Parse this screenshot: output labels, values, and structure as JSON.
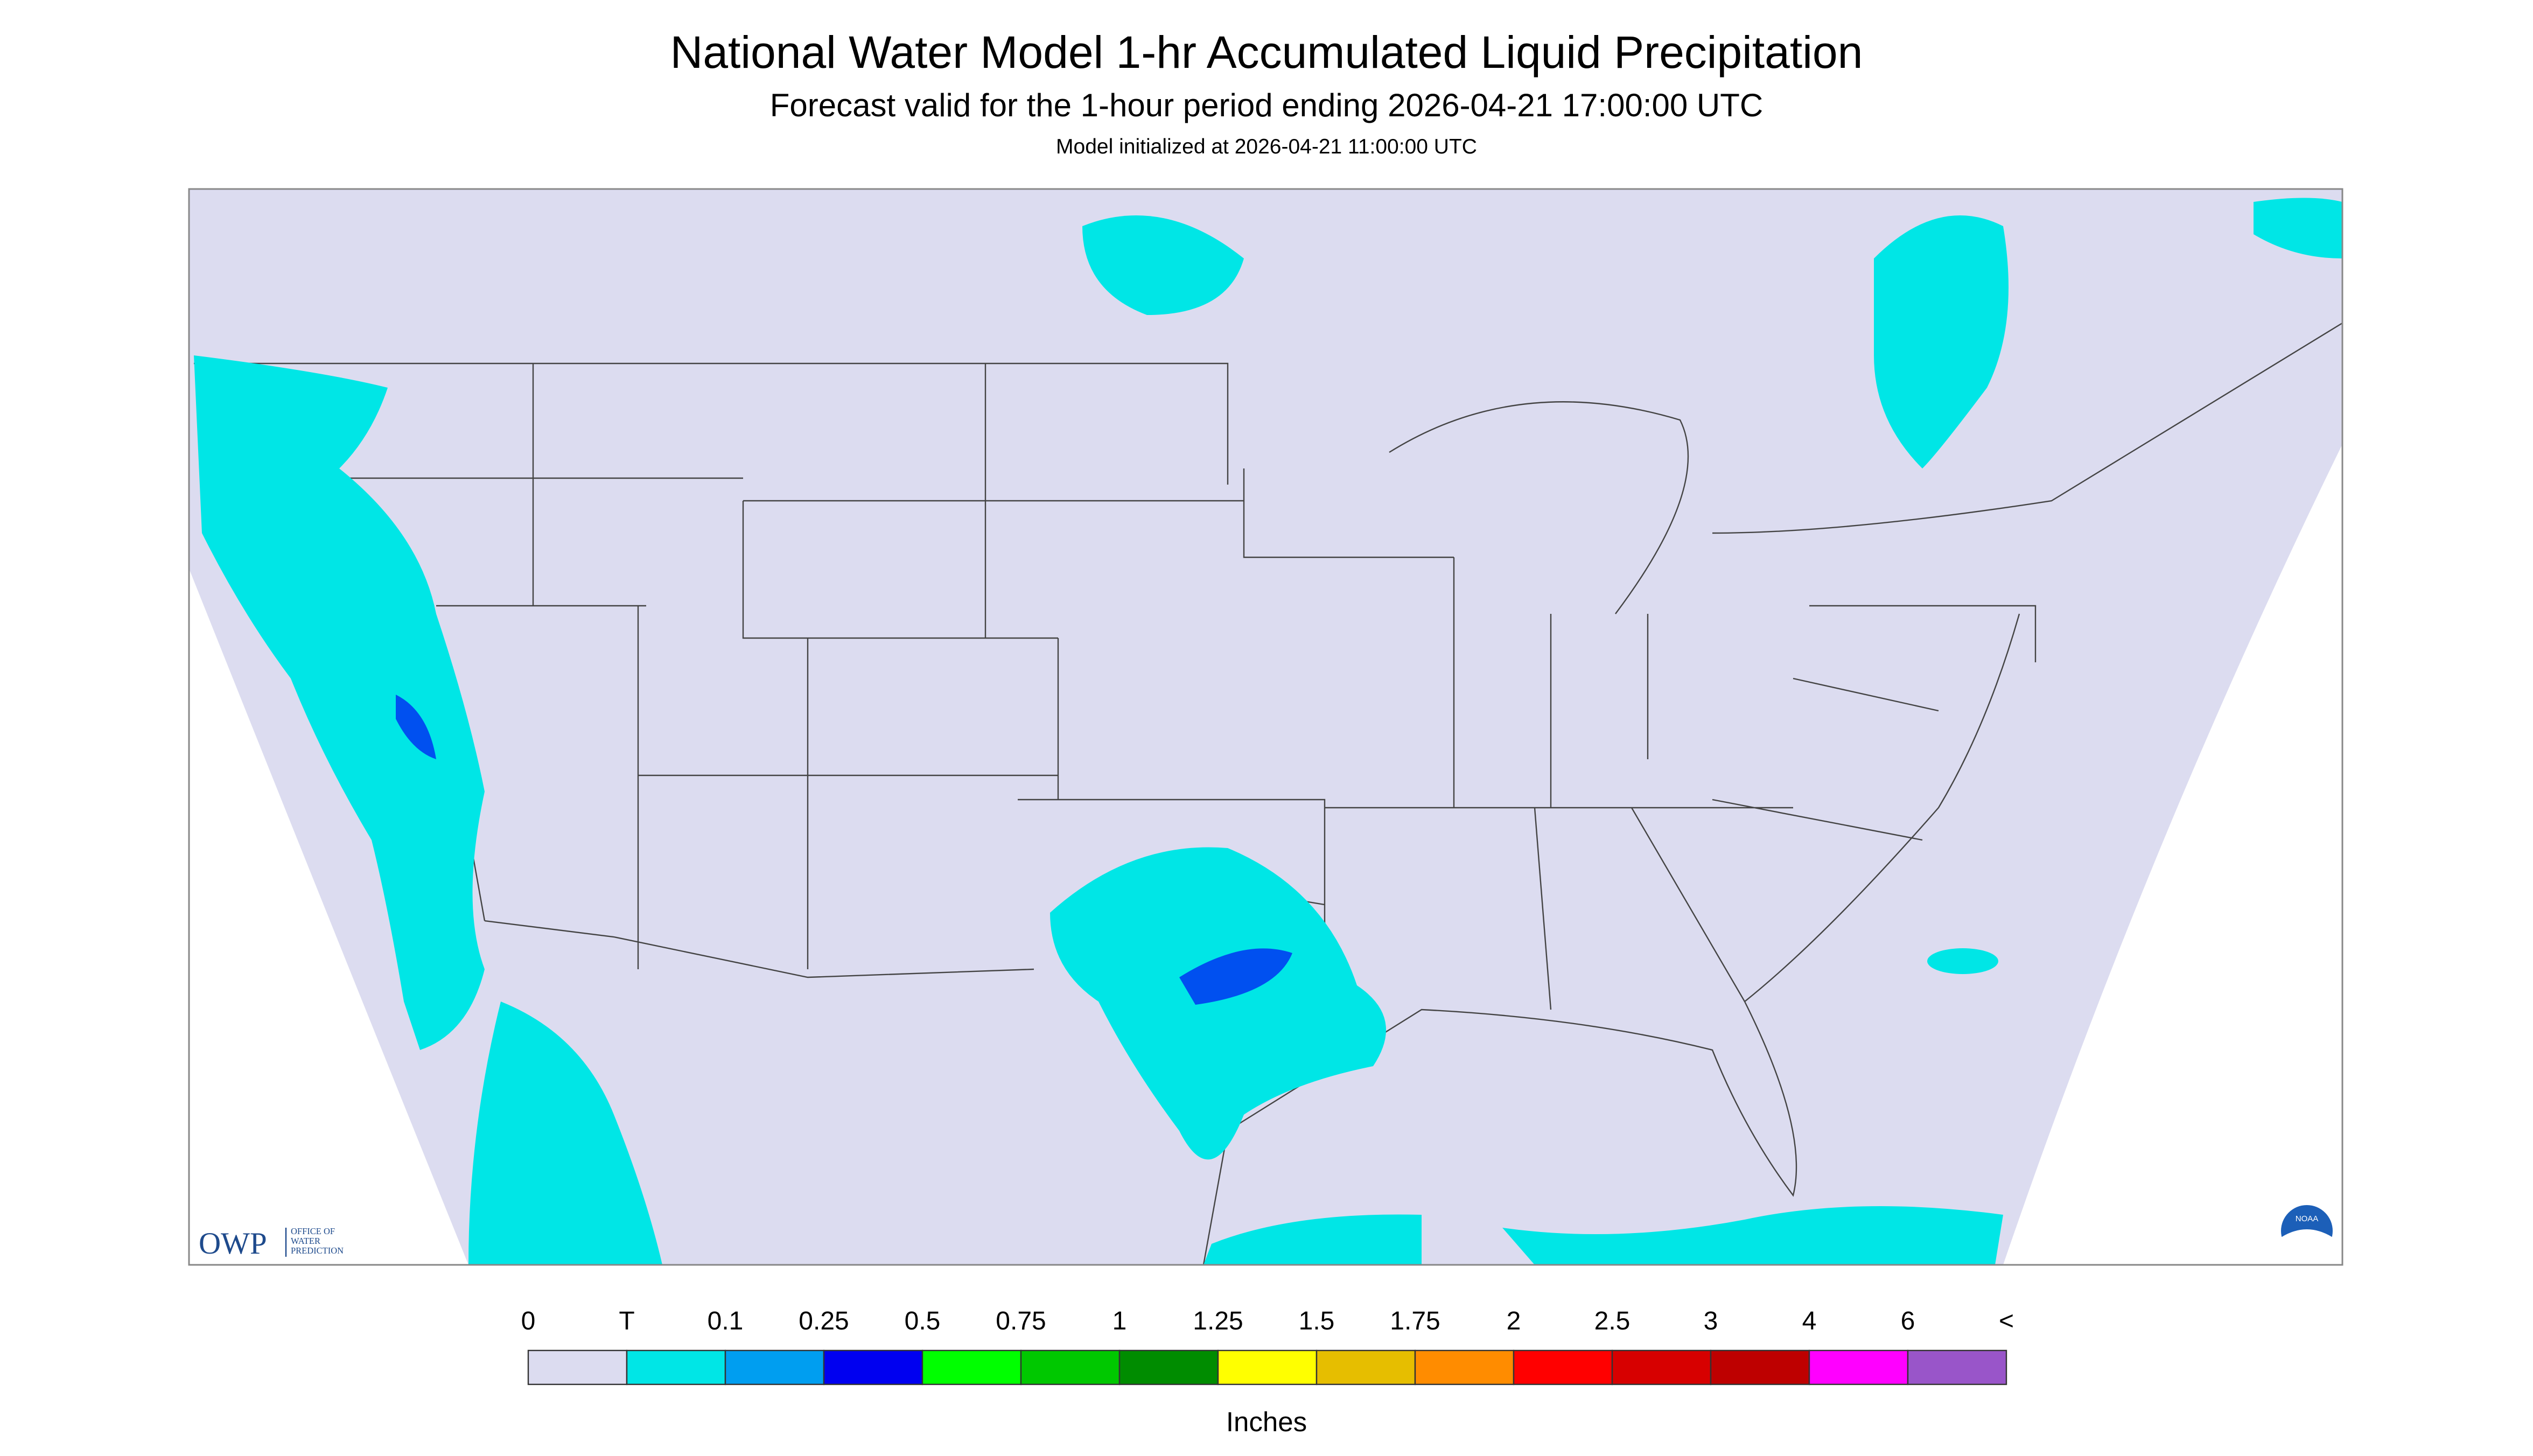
{
  "header": {
    "title": "National Water Model 1-hr Accumulated Liquid Precipitation",
    "subtitle": "Forecast valid for the 1-hour period ending 2026-04-21 17:00:00 UTC",
    "note": "Model initialized at 2026-04-21 11:00:00 UTC"
  },
  "logos": {
    "owp": "OWP",
    "owp_name": [
      "OFFICE OF",
      "WATER",
      "PREDICTION"
    ],
    "noaa": "NOAA"
  },
  "legend": {
    "labels": [
      "0",
      "T",
      "0.1",
      "0.25",
      "0.5",
      "0.75",
      "1",
      "1.25",
      "1.5",
      "1.75",
      "2",
      "2.5",
      "3",
      "4",
      "6",
      "<"
    ],
    "colors": [
      "#dcdcf0",
      "#00e6e6",
      "#009ef0",
      "#0000f0",
      "#00ff00",
      "#00c800",
      "#008c00",
      "#ffff00",
      "#e6be00",
      "#ff8c00",
      "#ff0000",
      "#d70000",
      "#be0000",
      "#ff00ff",
      "#9955c9"
    ],
    "unit": "Inches"
  }
}
